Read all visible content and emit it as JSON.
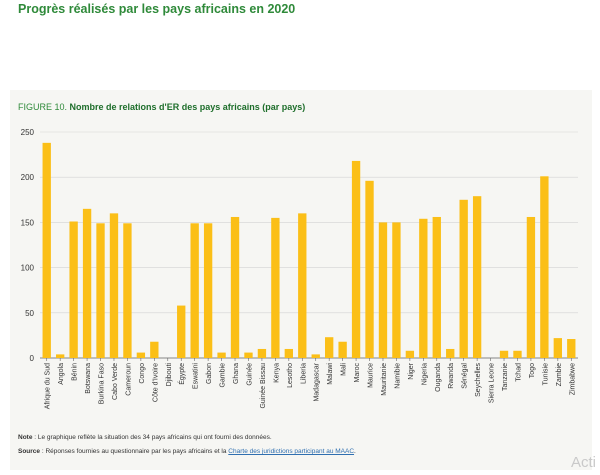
{
  "heading": "Progrès réalisés par les pays africains en 2020",
  "figure": {
    "label": "FIGURE 10.",
    "title": "Nombre de relations d'ER des pays africains (par pays)"
  },
  "notes": {
    "note_label": "Note",
    "note_text": " : Le graphique reflète la situation des 34 pays africains qui ont fourni des données.",
    "source_label": "Source",
    "source_text": " : Réponses fournies au questionnaire par les pays africains et la ",
    "source_link": "Charte des juridictions participant au MAAC",
    "source_end": "."
  },
  "watermark": "Acti",
  "chart_data": {
    "type": "bar",
    "title": "Nombre de relations d'ER des pays africains (par pays)",
    "xlabel": "",
    "ylabel": "",
    "ylim": [
      0,
      250
    ],
    "yticks": [
      0,
      50,
      100,
      150,
      200,
      250
    ],
    "grid": true,
    "bar_color": "#fbbf17",
    "categories": [
      "Afrique du Sud",
      "Angola",
      "Bénin",
      "Botswana",
      "Burkina Faso",
      "Cabo Verde",
      "Cameroun",
      "Congo",
      "Côte d'Ivoire",
      "Djibouti",
      "Égypte",
      "Eswatini",
      "Gabon",
      "Gambie",
      "Ghana",
      "Guinée",
      "Guinée Bissau",
      "Kenya",
      "Lesotho",
      "Liberia",
      "Madagascar",
      "Malawi",
      "Mali",
      "Maroc",
      "Maurice",
      "Mauritanie",
      "Namibie",
      "Niger",
      "Nigeria",
      "Ouganda",
      "Rwanda",
      "Sénégal",
      "Seychelles",
      "Sierra Leone",
      "Tanzanie",
      "Tchad",
      "Togo",
      "Tunisie",
      "Zambie",
      "Zimbabwe"
    ],
    "values": [
      238,
      4,
      151,
      165,
      149,
      160,
      149,
      6,
      18,
      0,
      58,
      149,
      149,
      6,
      156,
      6,
      10,
      155,
      10,
      160,
      4,
      23,
      18,
      218,
      196,
      150,
      150,
      8,
      154,
      156,
      10,
      175,
      179,
      0,
      8,
      8,
      156,
      201,
      22,
      21
    ]
  }
}
